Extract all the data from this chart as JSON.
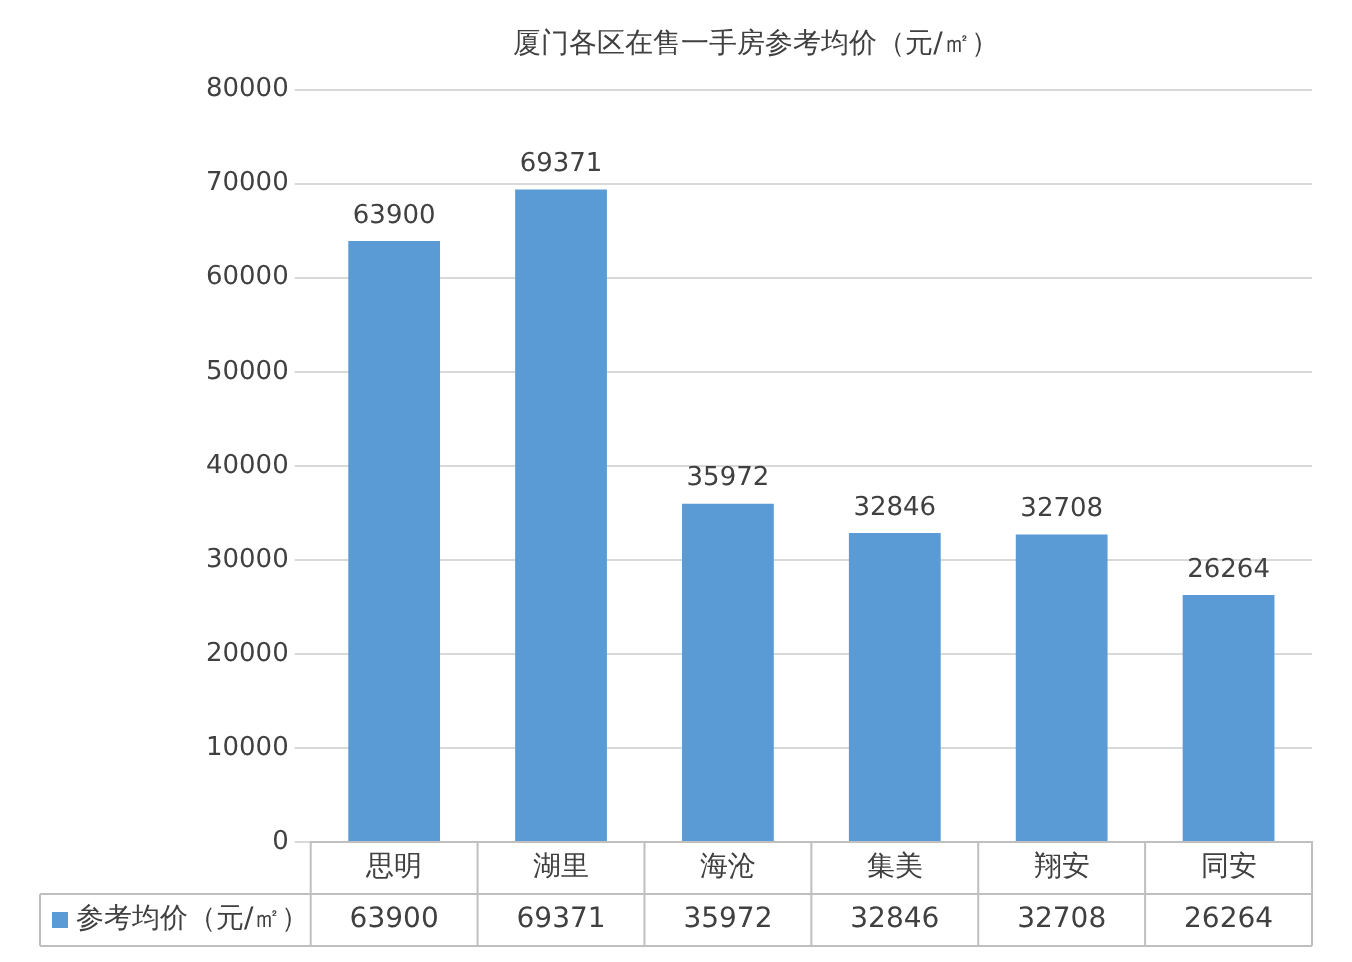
{
  "chart_data": {
    "type": "bar",
    "title": "厦门各区在售一手房参考均价（元/㎡）",
    "categories": [
      "思明",
      "湖里",
      "海沧",
      "集美",
      "翔安",
      "同安"
    ],
    "series": [
      {
        "name": "参考均价（元/㎡）",
        "color": "#5b9bd5",
        "values": [
          63900,
          69371,
          35972,
          32846,
          32708,
          26264
        ]
      }
    ],
    "annotations": [
      "63900",
      "69371",
      "35972",
      "32846",
      "32708",
      "26264"
    ],
    "ylim": [
      0,
      80000
    ],
    "yticks": [
      0,
      10000,
      20000,
      30000,
      40000,
      50000,
      60000,
      70000,
      80000
    ],
    "grid": "y",
    "legend": "bottom",
    "data_labels": true
  }
}
